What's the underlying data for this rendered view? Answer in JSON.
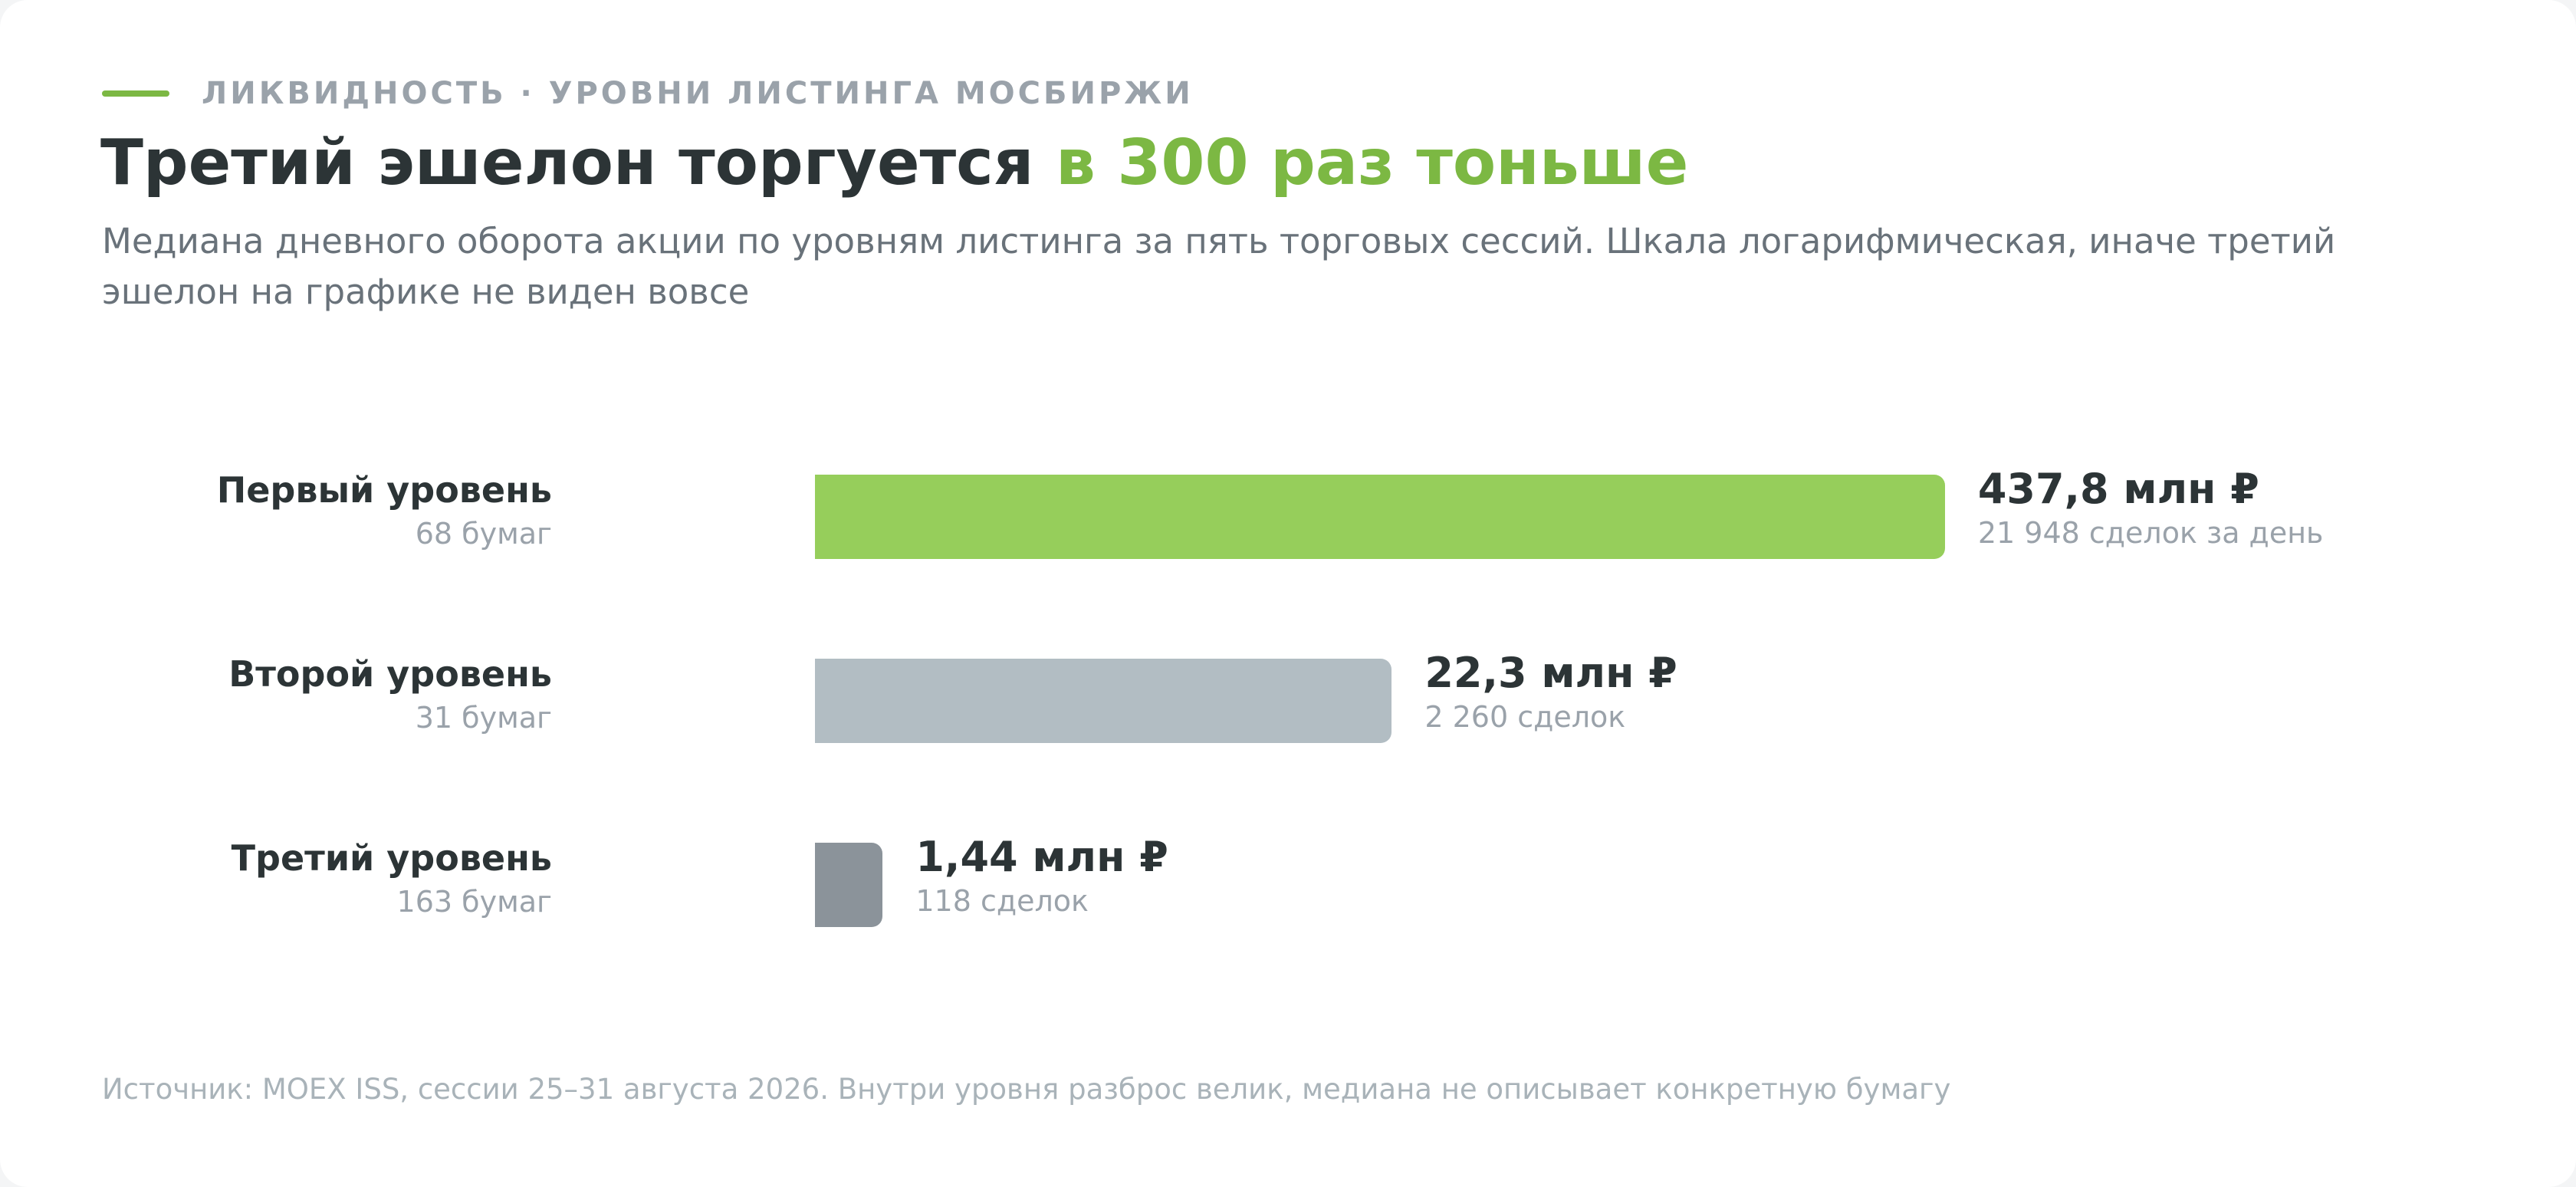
{
  "header": {
    "kicker": "ЛИКВИДНОСТЬ · УРОВНИ ЛИСТИНГА МОСБИРЖИ",
    "title_main": "Третий эшелон торгуется ",
    "title_accent": "в 300 раз тоньше",
    "subtitle": "Медиана дневного оборота акции по уровням листинга за пять торговых сессий. Шкала логарифмическая, иначе третий эшелон на графике не виден вовсе"
  },
  "footer": {
    "source": "Источник: MOEX ISS, сессии 25–31 августа 2026. Внутри уровня разброс велик, медиана не описывает конкретную бумагу"
  },
  "colors": {
    "accent": "#7cb843",
    "level1": "#96ce5b",
    "level2": "#b2bdc3",
    "level3": "#8b939a"
  },
  "chart_data": {
    "type": "bar",
    "orientation": "horizontal",
    "scale": "log",
    "unit": "млн ₽",
    "categories": [
      "Первый уровень",
      "Второй уровень",
      "Третий уровень"
    ],
    "values": [
      437.8,
      22.3,
      1.44
    ],
    "rows": [
      {
        "name": "Первый уровень",
        "count_label": "68 бумаг",
        "value": 437.8,
        "value_label": "437,8 млн ₽",
        "deals_label": "21 948 сделок за день",
        "color": "#96ce5b"
      },
      {
        "name": "Второй уровень",
        "count_label": "31 бумаг",
        "value": 22.3,
        "value_label": "22,3 млн ₽",
        "deals_label": "2 260 сделок",
        "color": "#b2bdc3"
      },
      {
        "name": "Третий уровень",
        "count_label": "163 бумаг",
        "value": 1.44,
        "value_label": "1,44 млн ₽",
        "deals_label": "118 сделок",
        "color": "#8b939a"
      }
    ]
  }
}
